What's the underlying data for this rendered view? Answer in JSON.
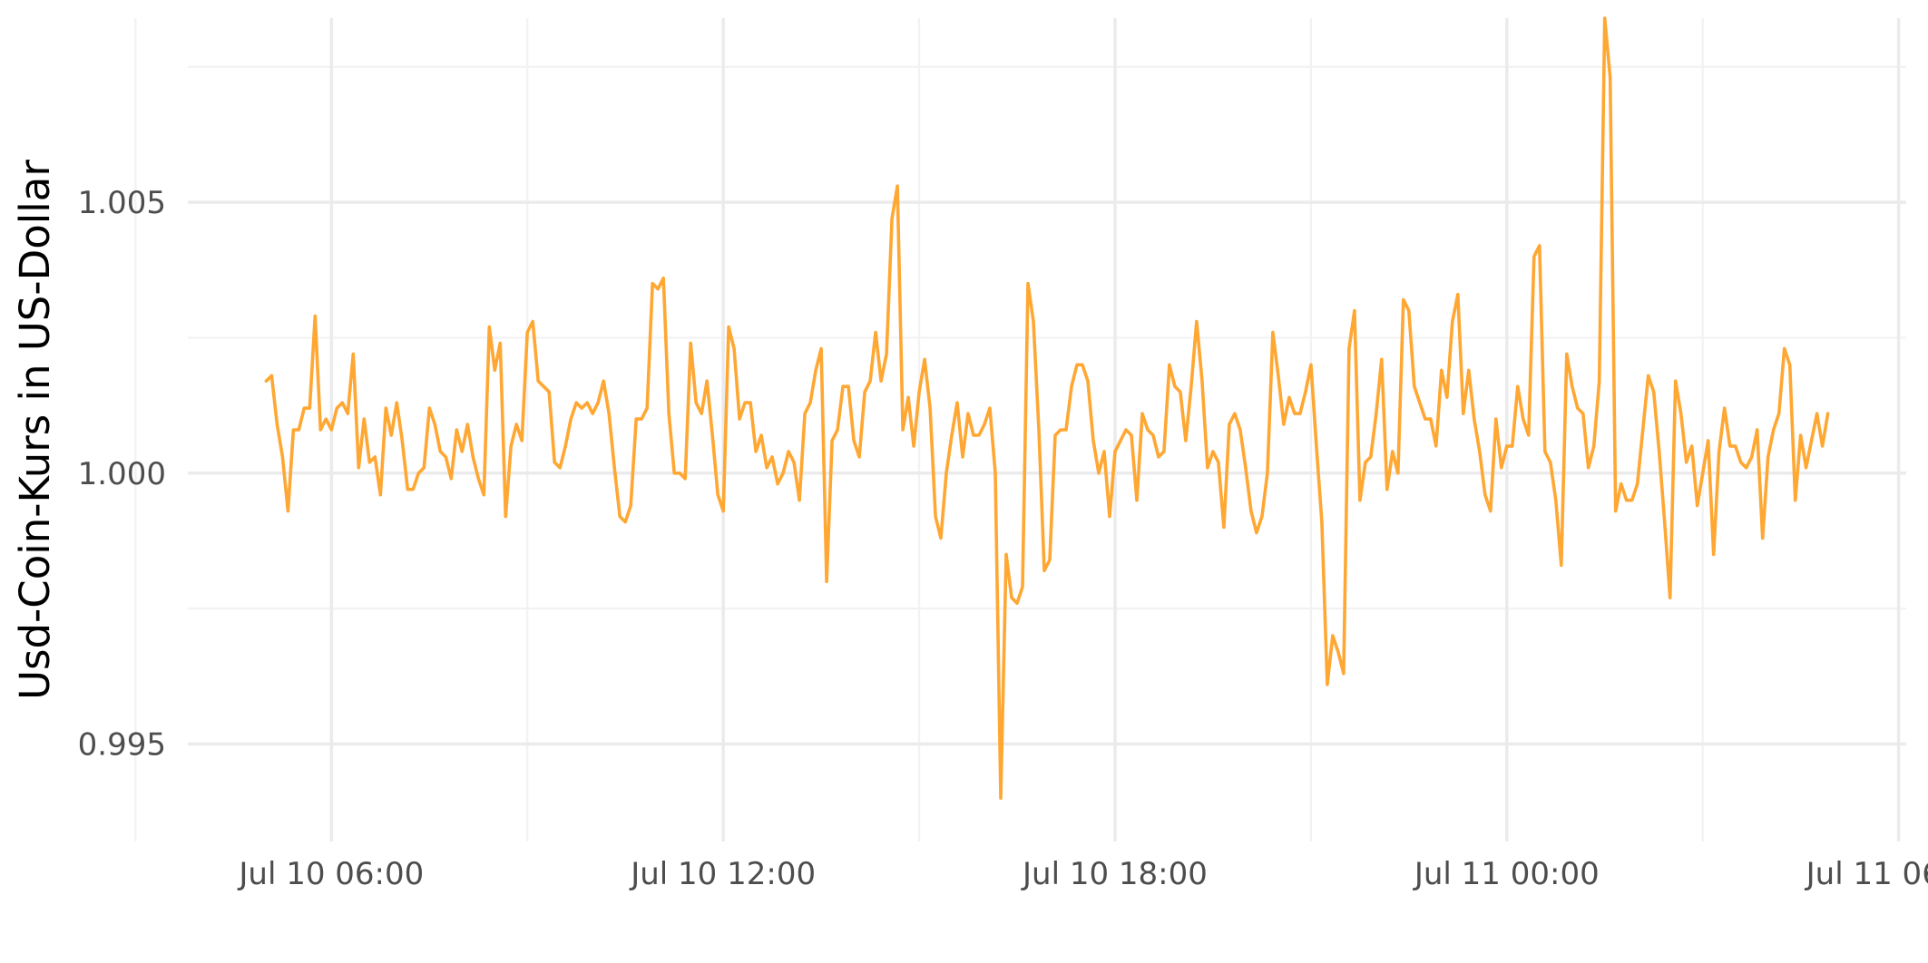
{
  "chart_data": {
    "type": "line",
    "title": "",
    "xlabel": "",
    "ylabel": "Usd-Coin-Kurs in US-Dollar",
    "grid": true,
    "legend": "none",
    "color": "#ffa733",
    "xlim": [
      "2024-07-10 03:48",
      "2024-07-11 06:07"
    ],
    "ylim": [
      0.9932,
      1.0084
    ],
    "x_ticks": [
      "2024-07-10 06:00",
      "2024-07-10 12:00",
      "2024-07-10 18:00",
      "2024-07-11 00:00",
      "2024-07-11 06:00"
    ],
    "x_tick_labels": [
      "Jul 10 06:00",
      "Jul 10 12:00",
      "Jul 10 18:00",
      "Jul 11 00:00",
      "Jul 11 06:00"
    ],
    "x_minor_ticks": [
      "2024-07-10 03:00",
      "2024-07-10 09:00",
      "2024-07-10 15:00",
      "2024-07-10 21:00",
      "2024-07-11 03:00"
    ],
    "y_ticks": [
      0.995,
      1.0,
      1.005
    ],
    "y_tick_labels": [
      "0.995",
      "1.000",
      "1.005"
    ],
    "y_minor_ticks": [
      0.9975,
      1.0025,
      1.0075
    ],
    "series": [
      {
        "x_start": "2024-07-10 05:00",
        "interval_minutes": 5,
        "values": [
          1.0017,
          1.0018,
          1.0009,
          1.0003,
          0.9993,
          1.0008,
          1.0008,
          1.0012,
          1.0012,
          1.0029,
          1.0008,
          1.001,
          1.0008,
          1.0012,
          1.0013,
          1.0011,
          1.0022,
          1.0001,
          1.001,
          1.0002,
          1.0003,
          0.9996,
          1.0012,
          1.0007,
          1.0013,
          1.0006,
          0.9997,
          0.9997,
          1.0,
          1.0001,
          1.0012,
          1.0009,
          1.0004,
          1.0003,
          0.9999,
          1.0008,
          1.0004,
          1.0009,
          1.0003,
          0.9999,
          0.9996,
          1.0027,
          1.0019,
          1.0024,
          0.9992,
          1.0005,
          1.0009,
          1.0006,
          1.0026,
          1.0028,
          1.0017,
          1.0016,
          1.0015,
          1.0002,
          1.0001,
          1.0005,
          1.001,
          1.0013,
          1.0012,
          1.0013,
          1.0011,
          1.0013,
          1.0017,
          1.0011,
          1.0001,
          0.9992,
          0.9991,
          0.9994,
          1.001,
          1.001,
          1.0012,
          1.0035,
          1.0034,
          1.0036,
          1.0011,
          1.0,
          1.0,
          0.9999,
          1.0024,
          1.0013,
          1.0011,
          1.0017,
          1.0007,
          0.9996,
          0.9993,
          1.0027,
          1.0023,
          1.001,
          1.0013,
          1.0013,
          1.0004,
          1.0007,
          1.0001,
          1.0003,
          0.9998,
          1.0,
          1.0004,
          1.0002,
          0.9995,
          1.0011,
          1.0013,
          1.0019,
          1.0023,
          0.998,
          1.0006,
          1.0008,
          1.0016,
          1.0016,
          1.0006,
          1.0003,
          1.0015,
          1.0017,
          1.0026,
          1.0017,
          1.0022,
          1.0047,
          1.0053,
          1.0008,
          1.0014,
          1.0005,
          1.0015,
          1.0021,
          1.0012,
          0.9992,
          0.9988,
          1.0,
          1.0007,
          1.0013,
          1.0003,
          1.0011,
          1.0007,
          1.0007,
          1.0009,
          1.0012,
          1.0,
          0.994,
          0.9985,
          0.9977,
          0.9976,
          0.9979,
          1.0035,
          1.0028,
          1.0008,
          0.9982,
          0.9984,
          1.0007,
          1.0008,
          1.0008,
          1.0016,
          1.002,
          1.002,
          1.0017,
          1.0006,
          1.0,
          1.0004,
          0.9992,
          1.0004,
          1.0006,
          1.0008,
          1.0007,
          0.9995,
          1.0011,
          1.0008,
          1.0007,
          1.0003,
          1.0004,
          1.002,
          1.0016,
          1.0015,
          1.0006,
          1.0016,
          1.0028,
          1.0017,
          1.0001,
          1.0004,
          1.0002,
          0.999,
          1.0009,
          1.0011,
          1.0008,
          1.0001,
          0.9993,
          0.9989,
          0.9992,
          1.0,
          1.0026,
          1.0018,
          1.0009,
          1.0014,
          1.0011,
          1.0011,
          1.0015,
          1.002,
          1.0005,
          0.9991,
          0.9961,
          0.997,
          0.9967,
          0.9963,
          1.0023,
          1.003,
          0.9995,
          1.0002,
          1.0003,
          1.0011,
          1.0021,
          0.9997,
          1.0004,
          1.0,
          1.0032,
          1.003,
          1.0016,
          1.0013,
          1.001,
          1.001,
          1.0005,
          1.0019,
          1.0014,
          1.0028,
          1.0033,
          1.0011,
          1.0019,
          1.001,
          1.0004,
          0.9996,
          0.9993,
          1.001,
          1.0001,
          1.0005,
          1.0005,
          1.0016,
          1.001,
          1.0007,
          1.004,
          1.0042,
          1.0004,
          1.0002,
          0.9995,
          0.9983,
          1.0022,
          1.0016,
          1.0012,
          1.0011,
          1.0001,
          1.0005,
          1.0017,
          1.0084,
          1.0073,
          0.9993,
          0.9998,
          0.9995,
          0.9995,
          0.9998,
          1.0008,
          1.0018,
          1.0015,
          1.0004,
          0.9991,
          0.9977,
          1.0017,
          1.0011,
          1.0002,
          1.0005,
          0.9994,
          1.0,
          1.0006,
          0.9985,
          1.0004,
          1.0012,
          1.0005,
          1.0005,
          1.0002,
          1.0001,
          1.0003,
          1.0008,
          0.9988,
          1.0003,
          1.0008,
          1.0011,
          1.0023,
          1.002,
          0.9995,
          1.0007,
          1.0001,
          1.0006,
          1.0011,
          1.0005,
          1.0011
        ]
      }
    ]
  }
}
